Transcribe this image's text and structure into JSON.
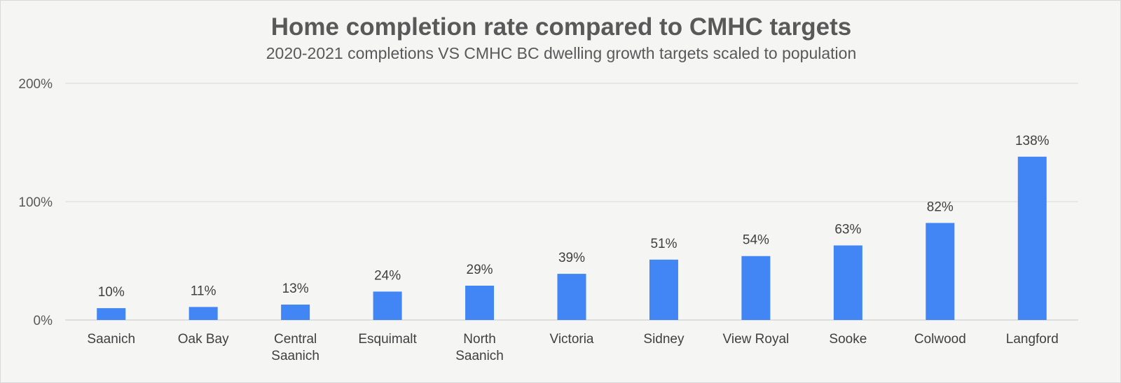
{
  "chart_data": {
    "type": "bar",
    "title": "Home completion rate compared to CMHC targets",
    "subtitle": "2020-2021 completions VS CMHC BC dwelling growth targets scaled to population",
    "categories": [
      [
        "Saanich"
      ],
      [
        "Oak Bay"
      ],
      [
        "Central",
        "Saanich"
      ],
      [
        "Esquimalt"
      ],
      [
        "North",
        "Saanich"
      ],
      [
        "Victoria"
      ],
      [
        "Sidney"
      ],
      [
        "View Royal"
      ],
      [
        "Sooke"
      ],
      [
        "Colwood"
      ],
      [
        "Langford"
      ]
    ],
    "values": [
      10,
      11,
      13,
      24,
      29,
      39,
      51,
      54,
      63,
      82,
      138
    ],
    "data_labels": [
      "10%",
      "11%",
      "13%",
      "24%",
      "29%",
      "39%",
      "51%",
      "54%",
      "63%",
      "82%",
      "138%"
    ],
    "y_ticks": [
      0,
      100,
      200
    ],
    "y_tick_labels": [
      "0%",
      "100%",
      "200%"
    ],
    "ylim": [
      0,
      200
    ],
    "grid": true,
    "legend": "none",
    "bar_color": "#4285f4",
    "xlabel": "",
    "ylabel": ""
  }
}
